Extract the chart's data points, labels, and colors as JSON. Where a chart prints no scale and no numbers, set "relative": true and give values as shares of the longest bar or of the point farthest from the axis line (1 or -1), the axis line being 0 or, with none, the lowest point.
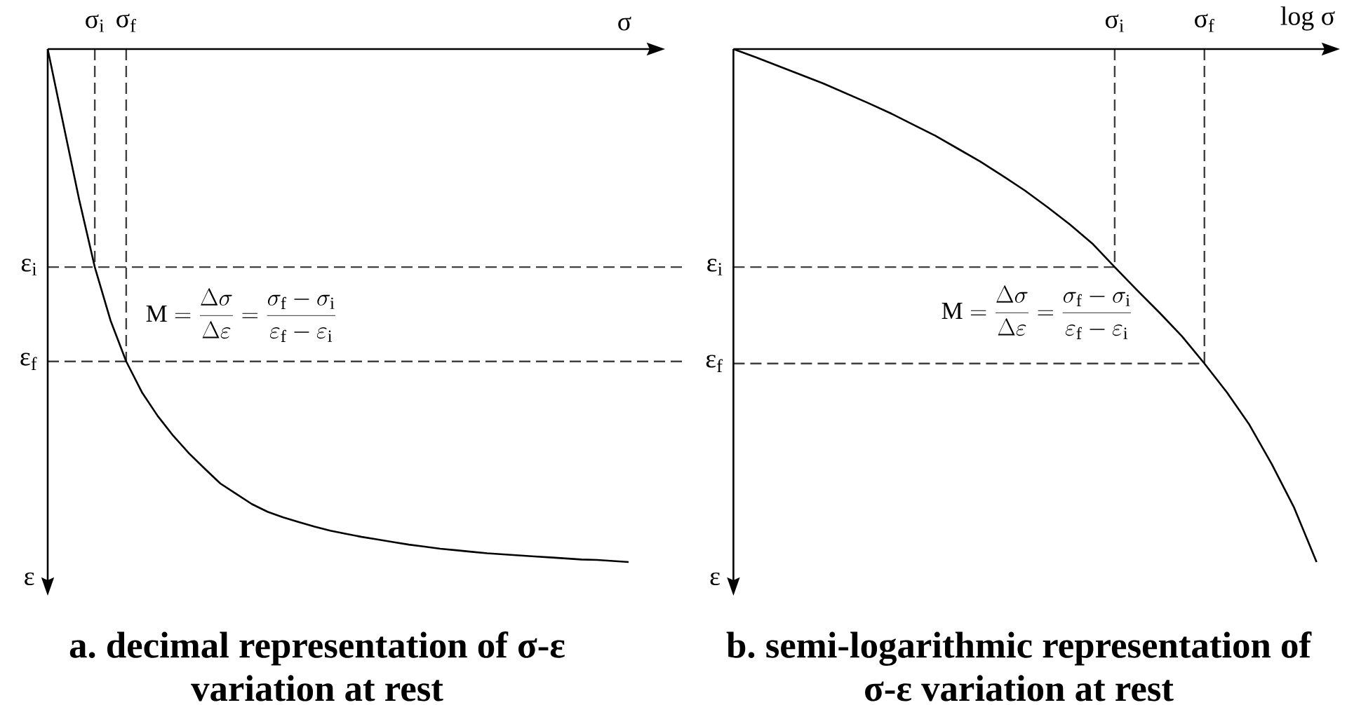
{
  "chart_data": [
    {
      "type": "line",
      "title": "a. decimal representation of σ-ε variation at rest",
      "xlabel": "σ",
      "ylabel": "ε",
      "relative": true,
      "marker": "none",
      "categories": [
        null,
        null,
        null,
        "σ$_{i}$",
        null,
        "σ$_{f}$",
        null,
        null,
        null,
        null,
        null,
        null,
        null,
        null,
        null,
        null,
        null,
        null,
        null,
        null,
        null,
        null,
        null,
        null,
        null,
        null,
        null,
        null,
        null,
        null,
        null,
        null,
        null,
        null,
        null,
        null,
        null,
        null
      ],
      "series": [
        {
          "color": "#000000",
          "values": [
            0,
            -0.147,
            -0.293,
            -0.425,
            -0.529,
            -0.609,
            -0.669,
            -0.715,
            -0.754,
            -0.788,
            -0.818,
            -0.847,
            -0.867,
            -0.887,
            -0.902,
            -0.913,
            -0.922,
            -0.931,
            -0.939,
            -0.945,
            -0.951,
            -0.956,
            -0.961,
            -0.966,
            -0.97,
            -0.974,
            -0.977,
            -0.98,
            -0.983,
            -0.985,
            -0.987,
            -0.989,
            -0.991,
            -0.993,
            -0.995,
            -0.996,
            -0.998,
            -1
          ]
        }
      ],
      "ref_lines": [
        {
          "axis": "x",
          "value": "σ$_{i}$",
          "color": "#404040",
          "line_style": "dashed"
        },
        {
          "axis": "x",
          "value": "σ$_{f}$",
          "color": "#404040",
          "line_style": "dashed"
        },
        {
          "axis": "y",
          "value": -0.425,
          "label": "ε$_{i}$",
          "color": "#404040",
          "line_style": "dashed"
        },
        {
          "axis": "y",
          "value": -0.609,
          "label": "ε$_{f}$",
          "color": "#404040",
          "line_style": "dashed"
        }
      ],
      "annotations": [
        "\\mathrm{M}=\\frac{\\Delta\\sigma}{\\Delta\\varepsilon}=\\frac{\\sigma_{\\mathrm{f}}-\\sigma_{\\mathrm{i}}}{\\varepsilon_{\\mathrm{f}}-\\varepsilon_{\\mathrm{i}}}"
      ]
    },
    {
      "type": "line",
      "title": "b. semi-logarithmic representation of σ-ε variation at rest",
      "xlabel": "log σ",
      "ylabel": "ε",
      "relative": true,
      "marker": "none",
      "categories": [
        null,
        null,
        null,
        null,
        null,
        null,
        null,
        null,
        null,
        null,
        null,
        null,
        null,
        null,
        null,
        null,
        null,
        "σ$_{i}$",
        null,
        null,
        null,
        "σ$_{f}$",
        null,
        null,
        null,
        null,
        null
      ],
      "series": [
        {
          "color": "#000000",
          "values": [
            0,
            -0.016,
            -0.033,
            -0.05,
            -0.067,
            -0.086,
            -0.105,
            -0.125,
            -0.147,
            -0.169,
            -0.194,
            -0.219,
            -0.247,
            -0.276,
            -0.308,
            -0.342,
            -0.379,
            -0.425,
            -0.47,
            -0.514,
            -0.56,
            -0.613,
            -0.669,
            -0.732,
            -0.809,
            -0.894,
            -1
          ]
        }
      ],
      "ref_lines": [
        {
          "axis": "x",
          "value": "σ$_{i}$",
          "color": "#404040",
          "line_style": "dashed"
        },
        {
          "axis": "x",
          "value": "σ$_{f}$",
          "color": "#404040",
          "line_style": "dashed"
        },
        {
          "axis": "y",
          "value": -0.425,
          "label": "ε$_{i}$",
          "color": "#404040",
          "line_style": "dashed"
        },
        {
          "axis": "y",
          "value": -0.613,
          "label": "ε$_{f}$",
          "color": "#404040",
          "line_style": "dashed"
        }
      ],
      "annotations": [
        "\\mathrm{M}=\\frac{\\Delta\\sigma}{\\Delta\\varepsilon}=\\frac{\\sigma_{\\mathrm{f}}-\\sigma_{\\mathrm{i}}}{\\varepsilon_{\\mathrm{f}}-\\varepsilon_{\\mathrm{i}}}"
      ]
    }
  ]
}
